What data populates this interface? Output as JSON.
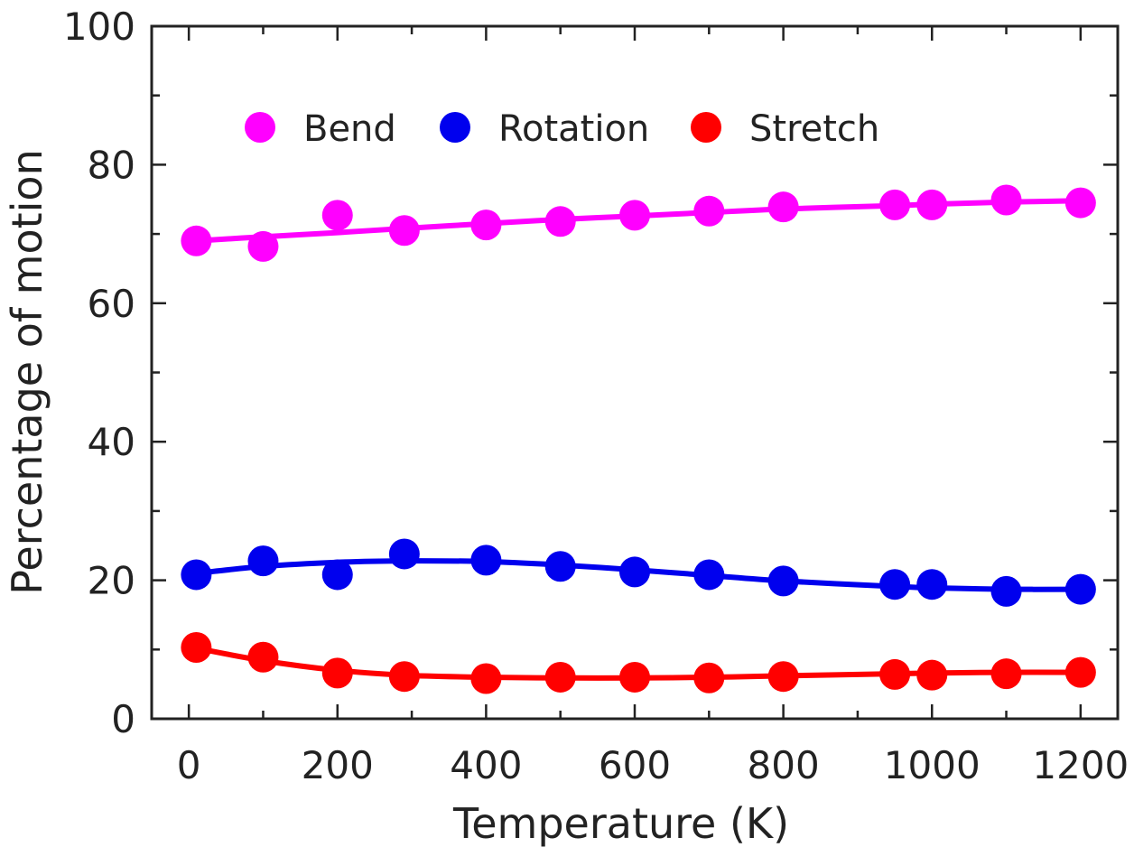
{
  "chart_data": {
    "type": "scatter",
    "xlabel": "Temperature (K)",
    "ylabel": "Percentage of motion",
    "xlim": [
      -50,
      1250
    ],
    "ylim": [
      0,
      100
    ],
    "x_ticks": [
      0,
      200,
      400,
      600,
      800,
      1000,
      1200
    ],
    "y_ticks": [
      0,
      20,
      40,
      60,
      80,
      100
    ],
    "legend_position": "top-left, inside plot, horizontal",
    "grid": false,
    "series": [
      {
        "name": "Bend",
        "color": "#ff00ff",
        "x": [
          10,
          100,
          200,
          290,
          400,
          500,
          600,
          700,
          800,
          950,
          1000,
          1100,
          1200
        ],
        "y": [
          69.0,
          68.2,
          72.7,
          70.5,
          71.3,
          71.8,
          72.7,
          73.3,
          73.9,
          74.2,
          74.2,
          74.9,
          74.5
        ],
        "fit_y": [
          69.0,
          69.6,
          70.2,
          70.8,
          71.5,
          72.1,
          72.6,
          73.1,
          73.6,
          74.1,
          74.3,
          74.6,
          74.8
        ]
      },
      {
        "name": "Rotation",
        "color": "#0000ee",
        "x": [
          10,
          100,
          200,
          290,
          400,
          500,
          600,
          700,
          800,
          950,
          1000,
          1100,
          1200
        ],
        "y": [
          20.8,
          22.8,
          20.8,
          23.8,
          22.9,
          22.0,
          21.2,
          20.8,
          19.9,
          19.4,
          19.4,
          18.4,
          18.7
        ],
        "fit_y": [
          21.0,
          22.0,
          22.6,
          22.8,
          22.7,
          22.2,
          21.5,
          20.7,
          19.9,
          19.1,
          18.9,
          18.7,
          18.7
        ]
      },
      {
        "name": "Stretch",
        "color": "#ff0000",
        "x": [
          10,
          100,
          200,
          290,
          400,
          500,
          600,
          700,
          800,
          950,
          1000,
          1100,
          1200
        ],
        "y": [
          10.3,
          8.9,
          6.6,
          6.1,
          5.8,
          6.0,
          6.0,
          5.9,
          6.1,
          6.4,
          6.3,
          6.5,
          6.7
        ],
        "fit_y": [
          10.2,
          8.4,
          7.0,
          6.3,
          6.0,
          5.9,
          5.9,
          6.0,
          6.2,
          6.5,
          6.6,
          6.7,
          6.7
        ]
      }
    ]
  }
}
